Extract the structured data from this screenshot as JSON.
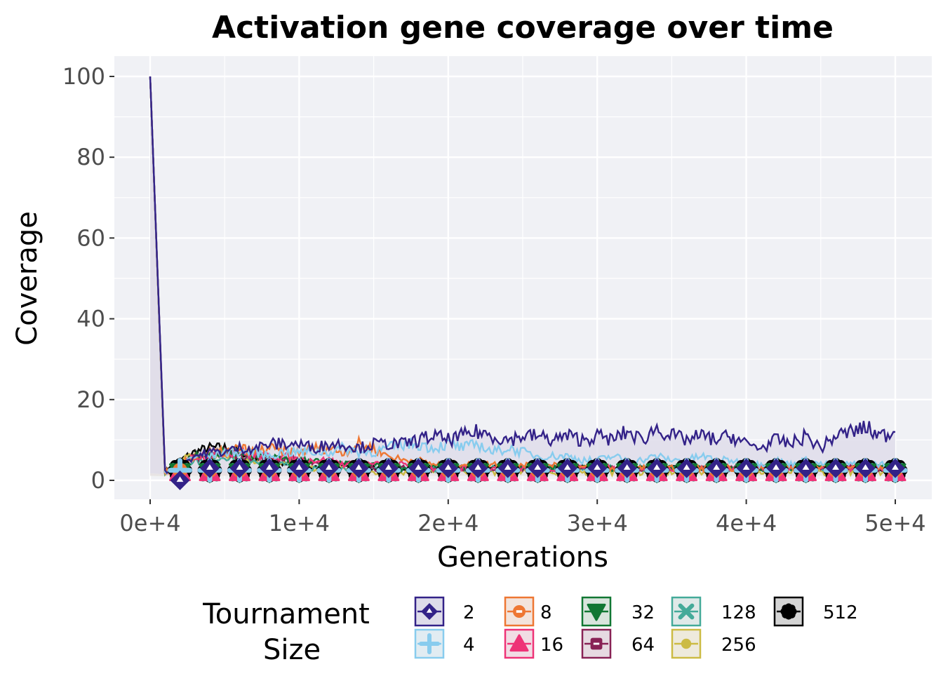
{
  "chart_data": {
    "type": "line",
    "title": "Activation gene coverage over time",
    "xlabel": "Generations",
    "ylabel": "Coverage",
    "xlim": [
      -2500,
      52500
    ],
    "ylim": [
      -4.5,
      105
    ],
    "xticks": [
      0,
      10000,
      20000,
      30000,
      40000,
      50000
    ],
    "xtick_labels": [
      "0e+4",
      "1e+4",
      "2e+4",
      "3e+4",
      "4e+4",
      "5e+4"
    ],
    "yticks": [
      0,
      20,
      40,
      60,
      80,
      100
    ],
    "ytick_labels": [
      "0",
      "20",
      "40",
      "60",
      "80",
      "100"
    ],
    "grid": true,
    "legend": {
      "title_lines": [
        "Tournament",
        "Size"
      ],
      "placement": "bottom"
    },
    "x": [
      0,
      1000,
      2000,
      3000,
      4000,
      5000,
      6000,
      7000,
      8000,
      9000,
      10000,
      11000,
      12000,
      13000,
      14000,
      15000,
      16000,
      17000,
      18000,
      19000,
      20000,
      21000,
      22000,
      23000,
      24000,
      25000,
      26000,
      27000,
      28000,
      29000,
      30000,
      31000,
      32000,
      33000,
      34000,
      35000,
      36000,
      37000,
      38000,
      39000,
      40000,
      41000,
      42000,
      43000,
      44000,
      45000,
      46000,
      47000,
      48000,
      49000,
      50000
    ],
    "marker_x": [
      2000,
      4000,
      6000,
      8000,
      10000,
      12000,
      14000,
      16000,
      18000,
      20000,
      22000,
      24000,
      26000,
      28000,
      30000,
      32000,
      34000,
      36000,
      38000,
      40000,
      42000,
      44000,
      46000,
      48000,
      50000
    ],
    "series": [
      {
        "name": "2",
        "color": "#332288",
        "fill": "#dedcea",
        "marker": "diamond",
        "median": 3,
        "values": [
          100,
          2,
          4,
          6,
          7,
          7,
          8,
          8,
          9,
          9,
          9,
          8,
          9,
          9,
          8,
          9,
          9,
          9,
          10,
          11,
          10,
          11,
          12,
          11,
          10,
          11,
          11,
          10,
          11,
          10,
          11,
          10,
          12,
          10,
          13,
          11,
          10,
          11,
          10,
          11,
          9,
          8,
          10,
          9,
          11,
          8,
          11,
          12,
          13,
          11,
          12
        ]
      },
      {
        "name": "4",
        "color": "#88ccee",
        "fill": "#e1ecf2",
        "marker": "plus",
        "median": 2.5,
        "values": [
          100,
          2,
          4,
          6,
          6,
          7,
          7,
          7,
          6,
          7,
          7,
          7,
          7,
          8,
          7,
          7,
          8,
          9,
          9,
          8,
          9,
          8,
          9,
          7,
          8,
          7,
          6,
          6,
          6,
          5,
          5,
          6,
          5,
          5,
          6,
          5,
          5,
          6,
          5,
          5,
          4,
          4,
          5,
          4,
          5,
          4,
          4,
          4,
          4,
          4,
          4
        ]
      },
      {
        "name": "8",
        "color": "#ee7733",
        "fill": "#f3e4dc",
        "marker": "circle",
        "median": 2.5,
        "values": [
          100,
          2,
          4,
          6,
          7,
          7,
          8,
          7,
          8,
          7,
          7,
          8,
          8,
          7,
          9,
          8,
          6,
          5,
          5,
          4,
          4,
          4,
          4,
          4,
          4,
          4,
          4,
          4,
          4,
          3,
          3,
          3,
          3,
          3,
          3,
          3,
          3,
          3,
          3,
          3,
          3,
          3,
          3,
          3,
          3,
          3,
          3,
          3,
          3,
          3,
          3
        ]
      },
      {
        "name": "16",
        "color": "#ee3377",
        "fill": "#f1dce4",
        "marker": "triangle",
        "median": 2,
        "values": [
          100,
          2,
          4,
          6,
          6,
          7,
          7,
          6,
          6,
          6,
          5,
          5,
          5,
          4,
          4,
          4,
          4,
          4,
          3,
          3,
          3,
          3,
          3,
          3,
          3,
          3,
          3,
          3,
          3,
          3,
          3,
          3,
          3,
          3,
          3,
          3,
          3,
          3,
          3,
          3,
          3,
          3,
          3,
          3,
          3,
          3,
          3,
          3,
          3,
          3,
          3
        ]
      },
      {
        "name": "32",
        "color": "#117733",
        "fill": "#d9e5dd",
        "marker": "triangle-down",
        "median": 2,
        "values": [
          100,
          2,
          4,
          6,
          6,
          7,
          6,
          6,
          6,
          5,
          5,
          5,
          4,
          4,
          4,
          4,
          3,
          3,
          3,
          3,
          3,
          3,
          3,
          3,
          3,
          3,
          3,
          3,
          3,
          3,
          3,
          3,
          3,
          3,
          3,
          3,
          3,
          3,
          3,
          3,
          3,
          3,
          3,
          3,
          3,
          3,
          3,
          3,
          3,
          3,
          3
        ]
      },
      {
        "name": "64",
        "color": "#882255",
        "fill": "#e6dae1",
        "marker": "square",
        "median": 2,
        "values": [
          100,
          2,
          4,
          6,
          6,
          7,
          6,
          6,
          5,
          5,
          5,
          4,
          4,
          4,
          4,
          3,
          3,
          3,
          3,
          3,
          3,
          3,
          3,
          3,
          3,
          3,
          3,
          3,
          3,
          3,
          3,
          3,
          3,
          3,
          3,
          3,
          3,
          3,
          3,
          3,
          3,
          3,
          3,
          3,
          3,
          3,
          3,
          3,
          3,
          3,
          3
        ]
      },
      {
        "name": "128",
        "color": "#44aa99",
        "fill": "#dfe9e8",
        "marker": "cross",
        "median": 2,
        "values": [
          100,
          2,
          4,
          5,
          5,
          6,
          5,
          5,
          4,
          4,
          4,
          3,
          3,
          3,
          3,
          3,
          3,
          3,
          3,
          3,
          3,
          3,
          3,
          3,
          3,
          3,
          3,
          3,
          3,
          3,
          3,
          3,
          3,
          3,
          3,
          3,
          3,
          3,
          3,
          3,
          3,
          3,
          3,
          3,
          3,
          3,
          3,
          3,
          3,
          3,
          3
        ]
      },
      {
        "name": "256",
        "color": "#ccbb44",
        "fill": "#eeeadc",
        "marker": "dot",
        "median": 1.5,
        "values": [
          100,
          2,
          5,
          6,
          6,
          7,
          5,
          5,
          4,
          4,
          3,
          3,
          3,
          3,
          2,
          2,
          2,
          2,
          2,
          2,
          2,
          2,
          2,
          2,
          2,
          2,
          2,
          2,
          2,
          2,
          2,
          2,
          2,
          2,
          2,
          2,
          2,
          2,
          2,
          2,
          2,
          2,
          2,
          2,
          2,
          2,
          2,
          2,
          2,
          2,
          2
        ]
      },
      {
        "name": "512",
        "color": "#000000",
        "fill": "#d4d4d4",
        "marker": "flower",
        "median": 2.5,
        "values": [
          100,
          2,
          5,
          7,
          8,
          8,
          7,
          6,
          5,
          4,
          4,
          3,
          3,
          3,
          3,
          3,
          3,
          3,
          3,
          3,
          3,
          3,
          3,
          3,
          3,
          3,
          3,
          3,
          3,
          3,
          3,
          3,
          3,
          3,
          3,
          3,
          3,
          3,
          3,
          3,
          3,
          3,
          3,
          3,
          3,
          3,
          3,
          3,
          3,
          3,
          3
        ]
      }
    ]
  }
}
